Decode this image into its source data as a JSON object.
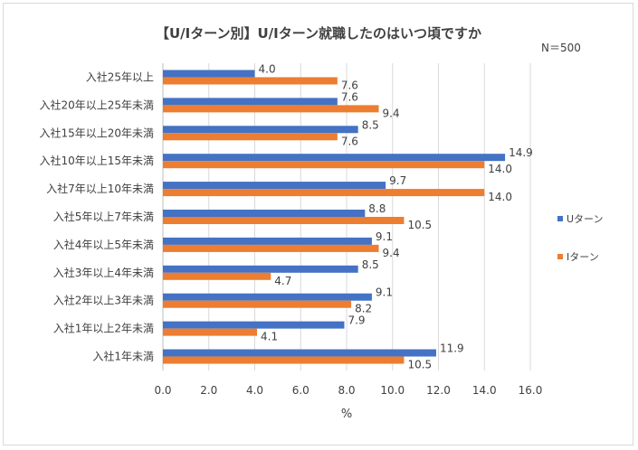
{
  "chart_data": {
    "type": "bar",
    "orientation": "horizontal",
    "title": "【U/Iターン別】U/Iターン就職したのはいつ頃ですか",
    "note": "N＝500",
    "xlabel": "%",
    "xlim": [
      0,
      16
    ],
    "xticks": [
      "0.0",
      "2.0",
      "4.0",
      "6.0",
      "8.0",
      "10.0",
      "12.0",
      "14.0",
      "16.0"
    ],
    "grid": true,
    "legend_position": "right",
    "categories": [
      "入社25年以上",
      "入社20年以上25年未満",
      "入社15年以上20年未満",
      "入社10年以上15年未満",
      "入社7年以上10年未満",
      "入社5年以上7年未満",
      "入社4年以上5年未満",
      "入社3年以上4年未満",
      "入社2年以上3年未満",
      "入社1年以上2年未満",
      "入社1年未満"
    ],
    "series": [
      {
        "name": "Uターン",
        "color": "#4472c4",
        "values": [
          4.0,
          7.6,
          8.5,
          14.9,
          9.7,
          8.8,
          9.1,
          8.5,
          9.1,
          7.9,
          11.9
        ]
      },
      {
        "name": "Iターン",
        "color": "#ed7d31",
        "values": [
          7.6,
          9.4,
          7.6,
          14.0,
          14.0,
          10.5,
          9.4,
          4.7,
          8.2,
          4.1,
          10.5
        ]
      }
    ]
  }
}
